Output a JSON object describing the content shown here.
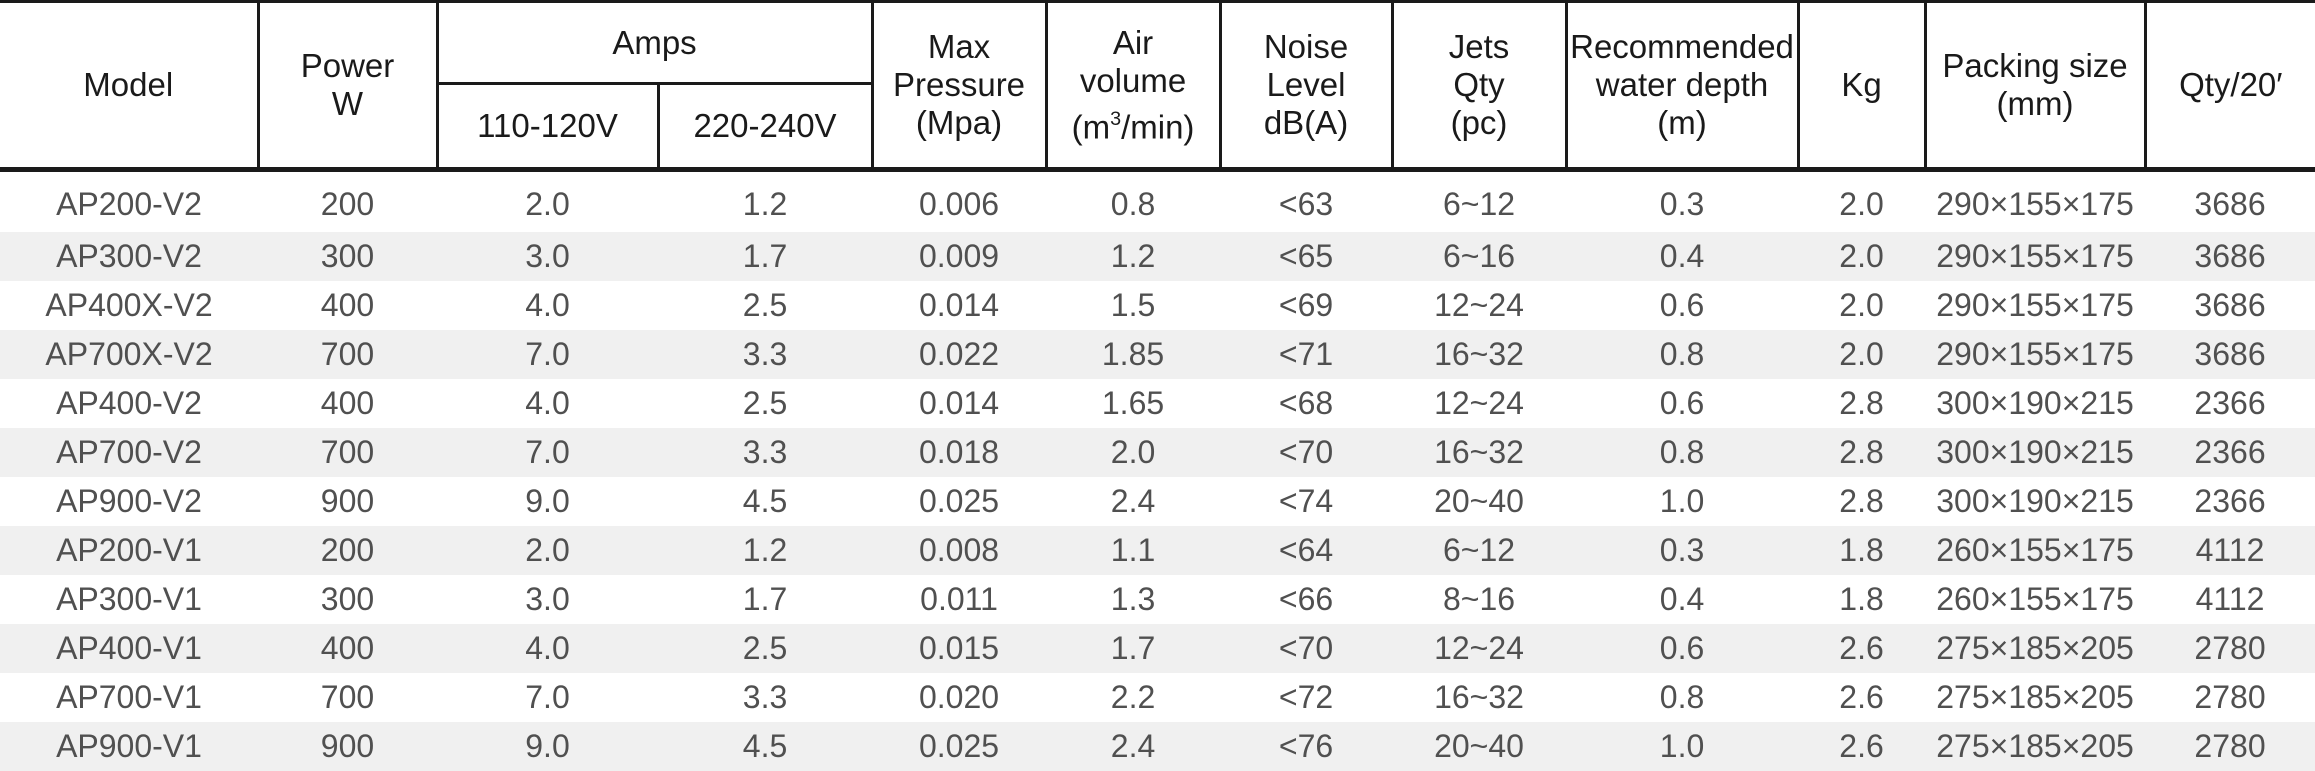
{
  "header": {
    "model": "Model",
    "power": [
      "Power",
      "W"
    ],
    "amps": "Amps",
    "amps_110": "110-120V",
    "amps_220": "220-240V",
    "max_pressure": [
      "Max",
      "Pressure",
      "(Mpa)"
    ],
    "air_volume": [
      "Air",
      "volume",
      "(m",
      "3",
      "/min)"
    ],
    "noise": [
      "Noise",
      "Level",
      "dB(A)"
    ],
    "jets": [
      "Jets",
      "Qty",
      "(pc)"
    ],
    "depth": [
      "Recommended",
      "water depth",
      "(m)"
    ],
    "kg": "Kg",
    "packing": [
      "Packing size",
      "(mm)"
    ],
    "qty": "Qty/20′"
  },
  "rows": [
    [
      "AP200-V2",
      "200",
      "2.0",
      "1.2",
      "0.006",
      "0.8",
      "<63",
      "6~12",
      "0.3",
      "2.0",
      "290×155×175",
      "3686"
    ],
    [
      "AP300-V2",
      "300",
      "3.0",
      "1.7",
      "0.009",
      "1.2",
      "<65",
      "6~16",
      "0.4",
      "2.0",
      "290×155×175",
      "3686"
    ],
    [
      "AP400X-V2",
      "400",
      "4.0",
      "2.5",
      "0.014",
      "1.5",
      "<69",
      "12~24",
      "0.6",
      "2.0",
      "290×155×175",
      "3686"
    ],
    [
      "AP700X-V2",
      "700",
      "7.0",
      "3.3",
      "0.022",
      "1.85",
      "<71",
      "16~32",
      "0.8",
      "2.0",
      "290×155×175",
      "3686"
    ],
    [
      "AP400-V2",
      "400",
      "4.0",
      "2.5",
      "0.014",
      "1.65",
      "<68",
      "12~24",
      "0.6",
      "2.8",
      "300×190×215",
      "2366"
    ],
    [
      "AP700-V2",
      "700",
      "7.0",
      "3.3",
      "0.018",
      "2.0",
      "<70",
      "16~32",
      "0.8",
      "2.8",
      "300×190×215",
      "2366"
    ],
    [
      "AP900-V2",
      "900",
      "9.0",
      "4.5",
      "0.025",
      "2.4",
      "<74",
      "20~40",
      "1.0",
      "2.8",
      "300×190×215",
      "2366"
    ],
    [
      "AP200-V1",
      "200",
      "2.0",
      "1.2",
      "0.008",
      "1.1",
      "<64",
      "6~12",
      "0.3",
      "1.8",
      "260×155×175",
      "4112"
    ],
    [
      "AP300-V1",
      "300",
      "3.0",
      "1.7",
      "0.011",
      "1.3",
      "<66",
      "8~16",
      "0.4",
      "1.8",
      "260×155×175",
      "4112"
    ],
    [
      "AP400-V1",
      "400",
      "4.0",
      "2.5",
      "0.015",
      "1.7",
      "<70",
      "12~24",
      "0.6",
      "2.6",
      "275×185×205",
      "2780"
    ],
    [
      "AP700-V1",
      "700",
      "7.0",
      "3.3",
      "0.020",
      "2.2",
      "<72",
      "16~32",
      "0.8",
      "2.6",
      "275×185×205",
      "2780"
    ],
    [
      "AP900-V1",
      "900",
      "9.0",
      "4.5",
      "0.025",
      "2.4",
      "<76",
      "20~40",
      "1.0",
      "2.6",
      "275×185×205",
      "2780"
    ]
  ]
}
